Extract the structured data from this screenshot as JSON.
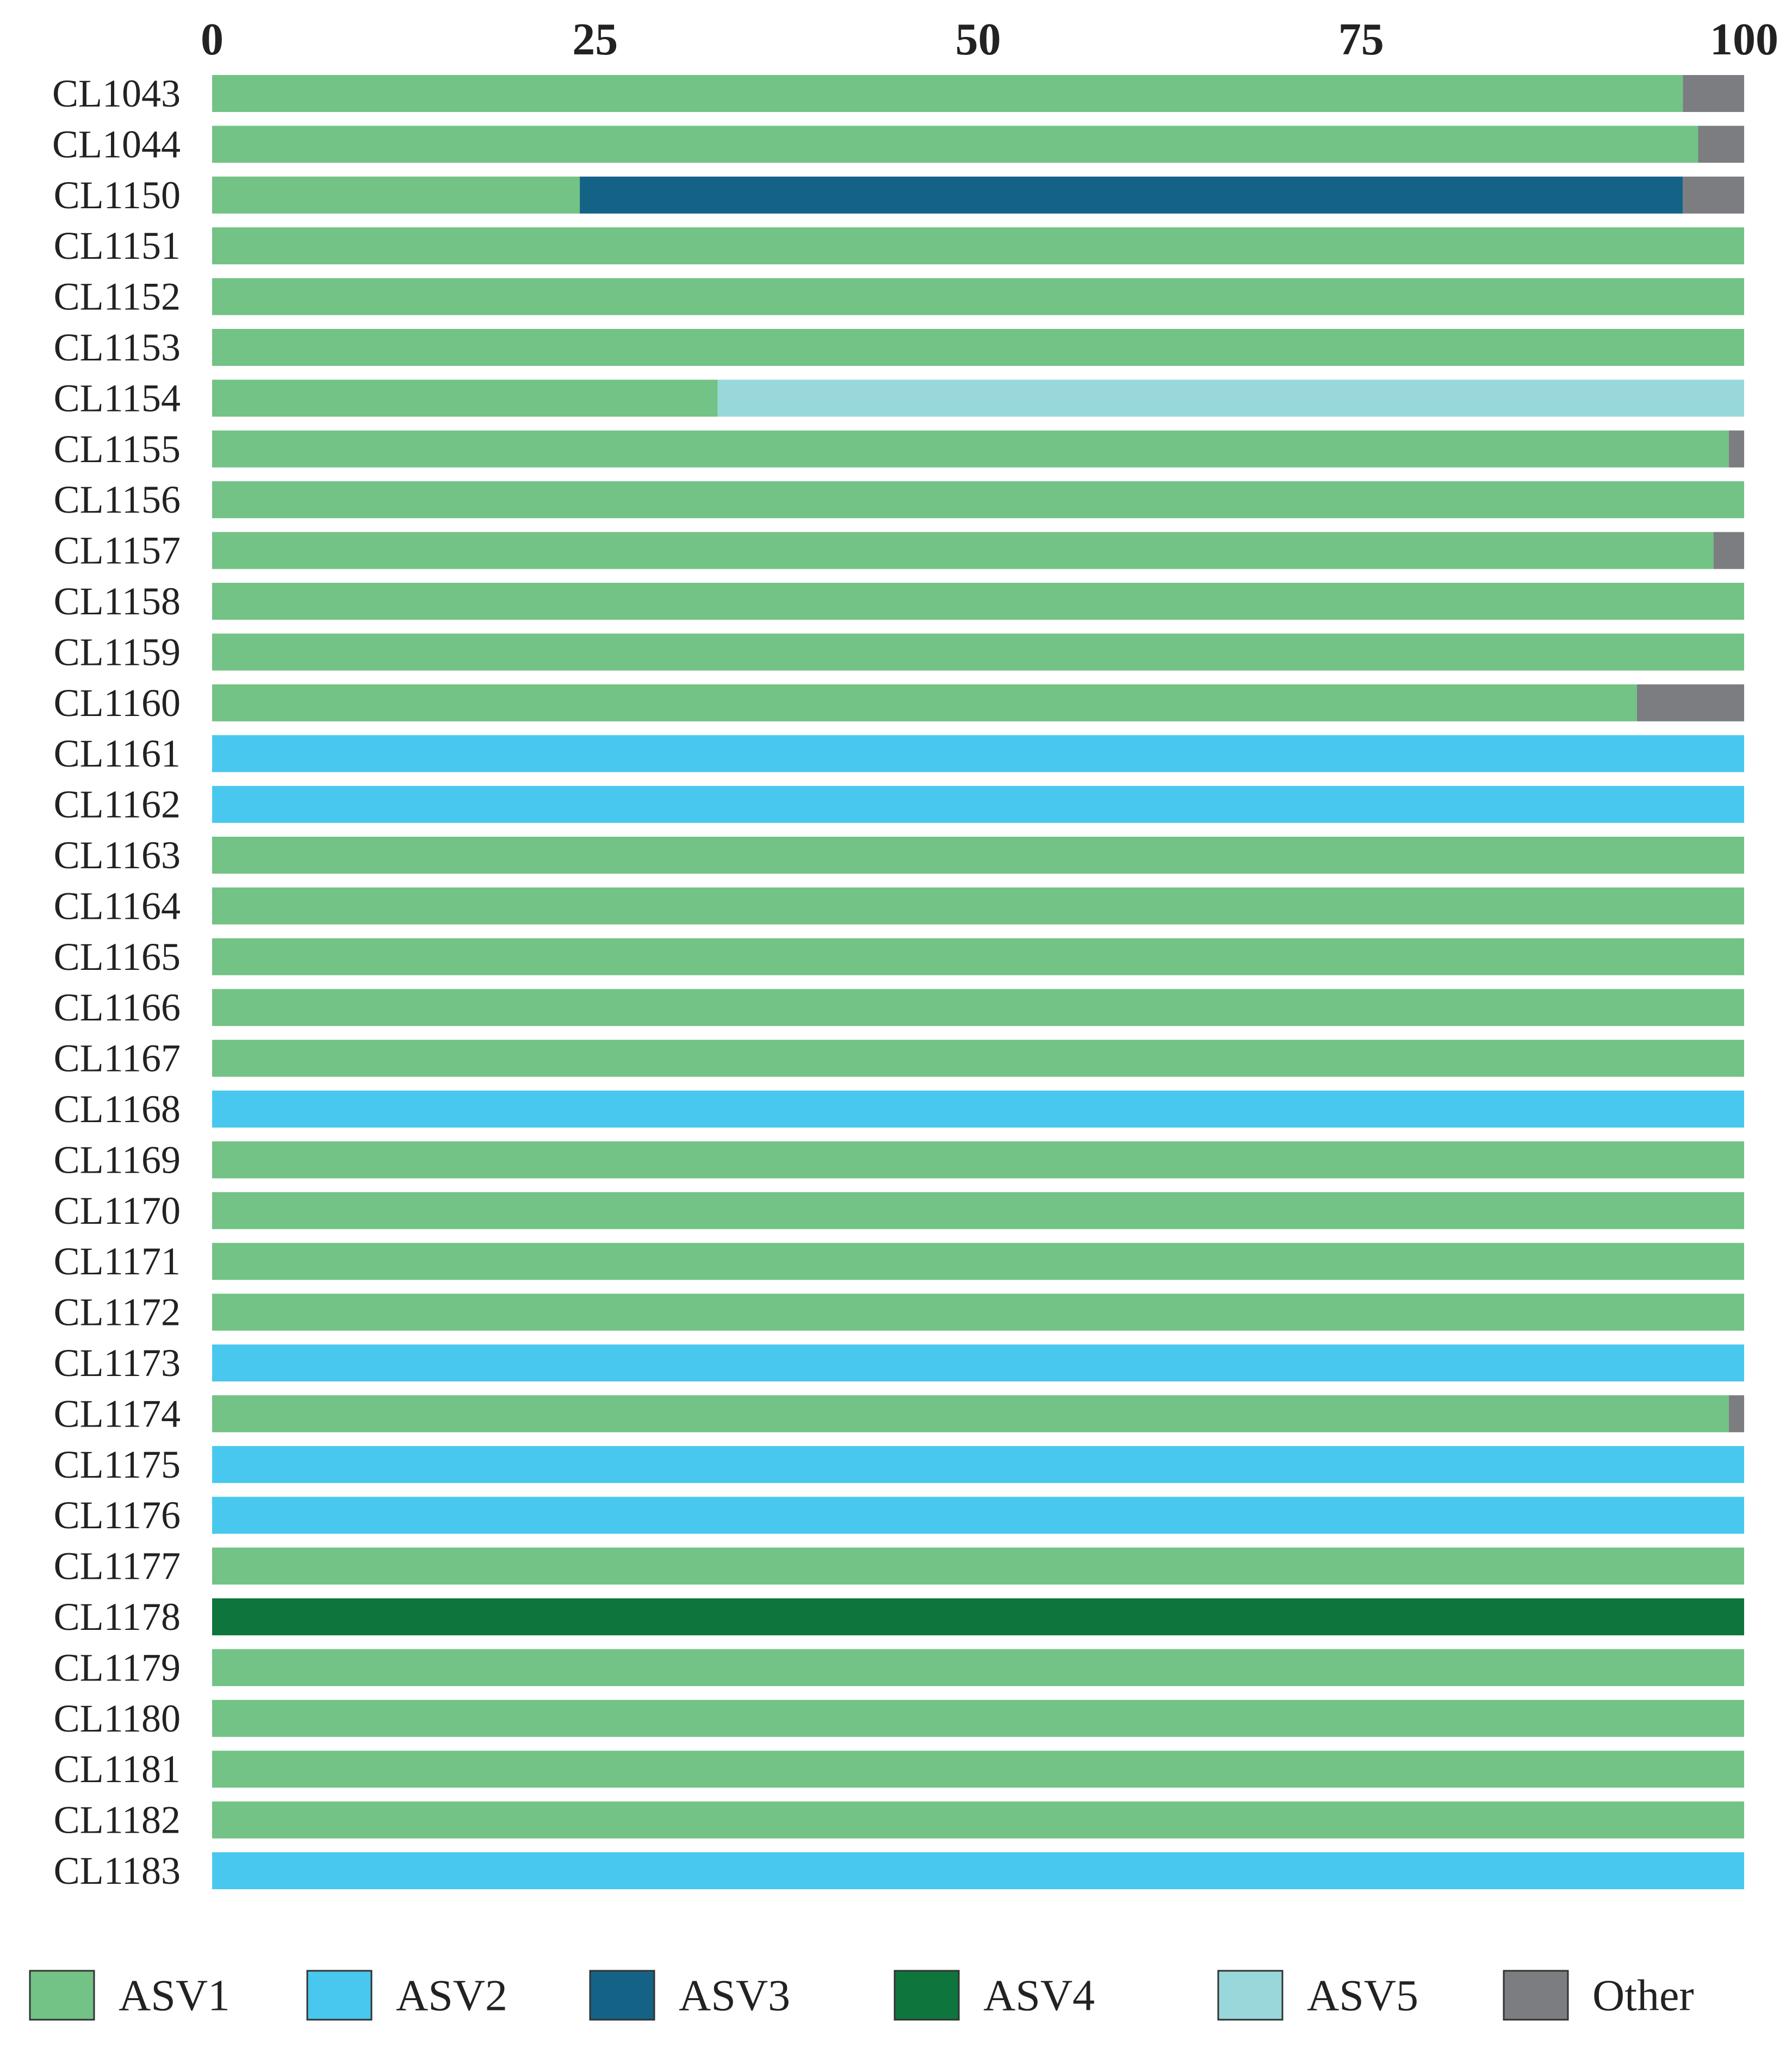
{
  "chart_data": {
    "type": "bar",
    "orientation": "horizontal",
    "stacked": true,
    "xlim": [
      0,
      100
    ],
    "x_ticks": [
      "0",
      "25",
      "50",
      "75",
      "100"
    ],
    "x_axis_position": "top",
    "grid": false,
    "legend_position": "bottom",
    "categories": [
      "CL1043",
      "CL1044",
      "CL1150",
      "CL1151",
      "CL1152",
      "CL1153",
      "CL1154",
      "CL1155",
      "CL1156",
      "CL1157",
      "CL1158",
      "CL1159",
      "CL1160",
      "CL1161",
      "CL1162",
      "CL1163",
      "CL1164",
      "CL1165",
      "CL1166",
      "CL1167",
      "CL1168",
      "CL1169",
      "CL1170",
      "CL1171",
      "CL1172",
      "CL1173",
      "CL1174",
      "CL1175",
      "CL1176",
      "CL1177",
      "CL1178",
      "CL1179",
      "CL1180",
      "CL1181",
      "CL1182",
      "CL1183"
    ],
    "series": [
      {
        "name": "ASV1",
        "color": "#72C385",
        "values": [
          96,
          97,
          24,
          100,
          100,
          100,
          33,
          99,
          100,
          98,
          100,
          100,
          93,
          0,
          0,
          100,
          100,
          100,
          100,
          100,
          0,
          100,
          100,
          100,
          100,
          0,
          99,
          0,
          0,
          100,
          0,
          100,
          100,
          100,
          100,
          0
        ]
      },
      {
        "name": "ASV2",
        "color": "#48C8EE",
        "values": [
          0,
          0,
          0,
          0,
          0,
          0,
          0,
          0,
          0,
          0,
          0,
          0,
          0,
          100,
          100,
          0,
          0,
          0,
          0,
          0,
          100,
          0,
          0,
          0,
          0,
          100,
          0,
          100,
          100,
          0,
          0,
          0,
          0,
          0,
          0,
          100
        ]
      },
      {
        "name": "ASV3",
        "color": "#146387",
        "values": [
          0,
          0,
          72,
          0,
          0,
          0,
          0,
          0,
          0,
          0,
          0,
          0,
          0,
          0,
          0,
          0,
          0,
          0,
          0,
          0,
          0,
          0,
          0,
          0,
          0,
          0,
          0,
          0,
          0,
          0,
          0,
          0,
          0,
          0,
          0,
          0
        ]
      },
      {
        "name": "ASV4",
        "color": "#0E763D",
        "values": [
          0,
          0,
          0,
          0,
          0,
          0,
          0,
          0,
          0,
          0,
          0,
          0,
          0,
          0,
          0,
          0,
          0,
          0,
          0,
          0,
          0,
          0,
          0,
          0,
          0,
          0,
          0,
          0,
          0,
          0,
          100,
          0,
          0,
          0,
          0,
          0
        ]
      },
      {
        "name": "ASV5",
        "color": "#98D8DA",
        "values": [
          0,
          0,
          0,
          0,
          0,
          0,
          67,
          0,
          0,
          0,
          0,
          0,
          0,
          0,
          0,
          0,
          0,
          0,
          0,
          0,
          0,
          0,
          0,
          0,
          0,
          0,
          0,
          0,
          0,
          0,
          0,
          0,
          0,
          0,
          0,
          0
        ]
      },
      {
        "name": "Other",
        "color": "#7B7D80",
        "values": [
          4,
          3,
          4,
          0,
          0,
          0,
          0,
          1,
          0,
          2,
          0,
          0,
          7,
          0,
          0,
          0,
          0,
          0,
          0,
          0,
          0,
          0,
          0,
          0,
          0,
          0,
          1,
          0,
          0,
          0,
          0,
          0,
          0,
          0,
          0,
          0
        ]
      }
    ]
  }
}
